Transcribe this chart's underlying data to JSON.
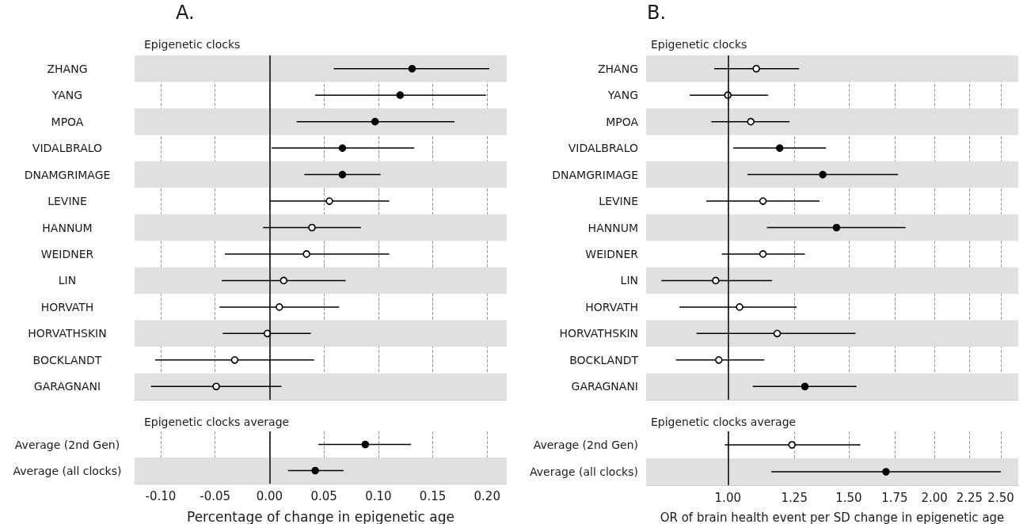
{
  "chart_data": [
    {
      "type": "scatter",
      "orientation": "horizontal",
      "title": "Epigenetic clocks",
      "annotations": [
        "A."
      ],
      "tick_labels": "y",
      "grid": "x",
      "marker": "circle",
      "categories": [
        "ZHANG",
        "YANG",
        "MPOA",
        "VIDALBRALO",
        "DNAMGRIMAGE",
        "LEVINE",
        "HANNUM",
        "WEIDNER",
        "LIN",
        "HORVATH",
        "HORVATHSKIN",
        "BOCKLANDT",
        "GARAGNANI"
      ],
      "xlim": [
        -0.124,
        0.218
      ],
      "xticks": [
        {
          "value": -0.1,
          "label": null
        },
        {
          "value": -0.05,
          "label": null
        },
        {
          "value": 0,
          "label": null
        },
        {
          "value": 0.05,
          "label": null
        },
        {
          "value": 0.1,
          "label": null
        },
        {
          "value": 0.15,
          "label": null
        },
        {
          "value": 0.2,
          "label": null
        }
      ],
      "series": [
        {
          "color": "#000000",
          "values": [
            0.131,
            0.12,
            0.097,
            0.067,
            0.067,
            null,
            null,
            null,
            null,
            null,
            null,
            null,
            null
          ],
          "errors": [
            [
              0.059,
              0.202
            ],
            [
              0.042,
              0.199
            ],
            [
              0.025,
              0.17
            ],
            [
              0.002,
              0.133
            ],
            [
              0.032,
              0.102
            ],
            null,
            null,
            null,
            null,
            null,
            null,
            null,
            null
          ]
        },
        {
          "color": "#ffffff",
          "values": [
            null,
            null,
            null,
            null,
            null,
            0.055,
            0.039,
            0.034,
            0.013,
            0.009,
            -0.002,
            -0.032,
            -0.049
          ],
          "errors": [
            null,
            null,
            null,
            null,
            null,
            [
              0.0,
              0.11
            ],
            [
              -0.006,
              0.084
            ],
            [
              -0.041,
              0.11
            ],
            [
              -0.044,
              0.07
            ],
            [
              -0.046,
              0.064
            ],
            [
              -0.043,
              0.038
            ],
            [
              -0.105,
              0.041
            ],
            [
              -0.109,
              0.011
            ]
          ]
        }
      ],
      "ref_lines": [
        {
          "axis": "x",
          "value": 0,
          "color": "#000000"
        }
      ],
      "bands": [
        {
          "axis": "y",
          "from": "ZHANG",
          "to": "ZHANG",
          "color": "#e0e0e0"
        },
        {
          "axis": "y",
          "from": "MPOA",
          "to": "MPOA",
          "color": "#e0e0e0"
        },
        {
          "axis": "y",
          "from": "DNAMGRIMAGE",
          "to": "DNAMGRIMAGE",
          "color": "#e0e0e0"
        },
        {
          "axis": "y",
          "from": "HANNUM",
          "to": "HANNUM",
          "color": "#e0e0e0"
        },
        {
          "axis": "y",
          "from": "LIN",
          "to": "LIN",
          "color": "#e0e0e0"
        },
        {
          "axis": "y",
          "from": "HORVATHSKIN",
          "to": "HORVATHSKIN",
          "color": "#e0e0e0"
        },
        {
          "axis": "y",
          "from": "GARAGNANI",
          "to": "GARAGNANI",
          "color": "#e0e0e0"
        }
      ]
    },
    {
      "type": "scatter",
      "orientation": "horizontal",
      "title": "Epigenetic clocks average",
      "xlabel": "Percentage of change in epigenetic age",
      "grid": "x",
      "marker": "circle",
      "categories": [
        "Average (2nd Gen)",
        "Average (all clocks)"
      ],
      "xlim": [
        -0.124,
        0.218
      ],
      "xticks": [
        {
          "value": -0.1,
          "label": "-0.10"
        },
        {
          "value": -0.05,
          "label": "-0.05"
        },
        {
          "value": 0,
          "label": "0.00"
        },
        {
          "value": 0.05,
          "label": "0.05"
        },
        {
          "value": 0.1,
          "label": "0.10"
        },
        {
          "value": 0.15,
          "label": "0.15"
        },
        {
          "value": 0.2,
          "label": "0.20"
        }
      ],
      "series": [
        {
          "color": "#000000",
          "values": [
            0.088,
            0.042
          ],
          "errors": [
            [
              0.045,
              0.13
            ],
            [
              0.017,
              0.068
            ]
          ]
        }
      ],
      "ref_lines": [
        {
          "axis": "x",
          "value": 0,
          "color": "#000000"
        }
      ],
      "bands": [
        {
          "axis": "y",
          "from": "Average (all clocks)",
          "to": "Average (all clocks)",
          "color": "#e0e0e0"
        }
      ]
    },
    {
      "type": "scatter",
      "orientation": "horizontal",
      "title": "Epigenetic clocks",
      "annotations": [
        "B."
      ],
      "tick_labels": "y",
      "grid": "x",
      "marker": "circle",
      "log": "x",
      "categories": [
        "ZHANG",
        "YANG",
        "MPOA",
        "VIDALBRALO",
        "DNAMGRIMAGE",
        "LEVINE",
        "HANNUM",
        "WEIDNER",
        "LIN",
        "HORVATH",
        "HORVATHSKIN",
        "BOCKLANDT",
        "GARAGNANI"
      ],
      "xlim": [
        0.76,
        2.65
      ],
      "xticks": [
        {
          "value": 1,
          "label": null
        },
        {
          "value": 1.25,
          "label": null
        },
        {
          "value": 1.5,
          "label": null
        },
        {
          "value": 1.75,
          "label": null
        },
        {
          "value": 2,
          "label": null
        },
        {
          "value": 2.25,
          "label": null
        },
        {
          "value": 2.5,
          "label": null
        }
      ],
      "series": [
        {
          "color": "#000000",
          "values": [
            null,
            null,
            null,
            1.19,
            1.375,
            null,
            1.44,
            null,
            null,
            null,
            null,
            null,
            1.295
          ],
          "errors": [
            null,
            null,
            null,
            [
              1.018,
              1.39
            ],
            [
              1.068,
              1.77
            ],
            null,
            [
              1.14,
              1.815
            ],
            null,
            null,
            null,
            null,
            null,
            [
              1.087,
              1.54
            ]
          ]
        },
        {
          "color": "#ffffff",
          "values": [
            1.1,
            1.0,
            1.08,
            null,
            null,
            1.125,
            null,
            1.125,
            0.96,
            1.04,
            1.18,
            0.97,
            null
          ],
          "errors": [
            [
              0.955,
              1.27
            ],
            [
              0.88,
              1.145
            ],
            [
              0.946,
              1.23
            ],
            null,
            null,
            [
              0.93,
              1.36
            ],
            null,
            [
              0.98,
              1.295
            ],
            [
              0.8,
              1.16
            ],
            [
              0.85,
              1.26
            ],
            [
              0.9,
              1.535
            ],
            [
              0.84,
              1.13
            ],
            null
          ]
        }
      ],
      "ref_lines": [
        {
          "axis": "x",
          "value": 1,
          "color": "#000000"
        }
      ],
      "bands": [
        {
          "axis": "y",
          "from": "ZHANG",
          "to": "ZHANG",
          "color": "#e0e0e0"
        },
        {
          "axis": "y",
          "from": "MPOA",
          "to": "MPOA",
          "color": "#e0e0e0"
        },
        {
          "axis": "y",
          "from": "DNAMGRIMAGE",
          "to": "DNAMGRIMAGE",
          "color": "#e0e0e0"
        },
        {
          "axis": "y",
          "from": "HANNUM",
          "to": "HANNUM",
          "color": "#e0e0e0"
        },
        {
          "axis": "y",
          "from": "LIN",
          "to": "LIN",
          "color": "#e0e0e0"
        },
        {
          "axis": "y",
          "from": "HORVATHSKIN",
          "to": "HORVATHSKIN",
          "color": "#e0e0e0"
        },
        {
          "axis": "y",
          "from": "GARAGNANI",
          "to": "GARAGNANI",
          "color": "#e0e0e0"
        }
      ]
    },
    {
      "type": "scatter",
      "orientation": "horizontal",
      "title": "Epigenetic clocks average",
      "xlabel": "OR of brain health event per SD change in epigenetic age",
      "grid": "x",
      "marker": "circle",
      "log": "x",
      "categories": [
        "Average (2nd Gen)",
        "Average (all clocks)"
      ],
      "xlim": [
        0.76,
        2.65
      ],
      "xticks": [
        {
          "value": 1,
          "label": "1.00"
        },
        {
          "value": 1.25,
          "label": "1.25"
        },
        {
          "value": 1.5,
          "label": "1.50"
        },
        {
          "value": 1.75,
          "label": "1.75"
        },
        {
          "value": 2,
          "label": "2.00"
        },
        {
          "value": 2.25,
          "label": "2.25"
        },
        {
          "value": 2.5,
          "label": "2.50"
        }
      ],
      "series": [
        {
          "color": "#000000",
          "values": [
            null,
            1.7
          ],
          "errors": [
            null,
            [
              1.157,
              2.5
            ]
          ]
        },
        {
          "color": "#ffffff",
          "values": [
            1.24,
            null
          ],
          "errors": [
            [
              0.99,
              1.56
            ],
            null
          ]
        }
      ],
      "ref_lines": [
        {
          "axis": "x",
          "value": 1,
          "color": "#000000"
        }
      ],
      "bands": [
        {
          "axis": "y",
          "from": "Average (all clocks)",
          "to": "Average (all clocks)",
          "color": "#e0e0e0"
        }
      ]
    }
  ]
}
